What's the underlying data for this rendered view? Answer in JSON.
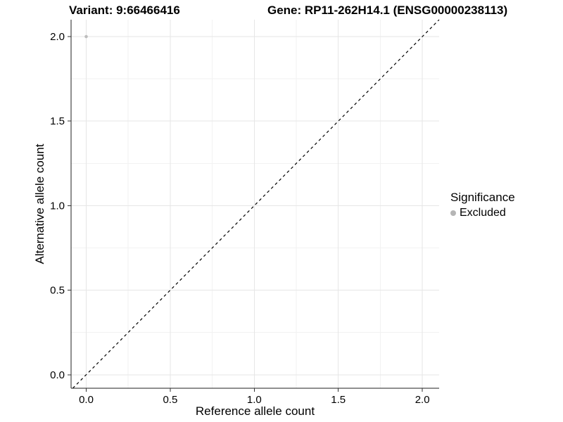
{
  "chart_data": {
    "type": "scatter",
    "title_left": "Variant: 9:66466416",
    "title_right": "Gene: RP11-262H14.1 (ENSG00000238113)",
    "xlabel": "Reference allele count",
    "ylabel": "Alternative allele count",
    "xlim": [
      -0.09,
      2.1
    ],
    "ylim": [
      -0.08,
      2.1
    ],
    "x_ticks": [
      0,
      0.5,
      1,
      1.5,
      2
    ],
    "x_tick_labels": [
      "0.0",
      "0.5",
      "1.0",
      "1.5",
      "2.0"
    ],
    "y_ticks": [
      0,
      0.5,
      1,
      1.5,
      2
    ],
    "y_tick_labels": [
      "0.0",
      "0.5",
      "1.0",
      "1.5",
      "2.0"
    ],
    "minor_ticks": [
      0.25,
      0.75,
      1.25,
      1.75
    ],
    "grid": "major and minor gridlines, white background",
    "identity_line": {
      "style": "dashed",
      "from": [
        0,
        0
      ],
      "to": [
        2,
        2
      ],
      "color": "#000000"
    },
    "series": [
      {
        "name": "Excluded",
        "color": "#bdbdbd",
        "points": [
          {
            "x": 0,
            "y": 2
          }
        ]
      }
    ],
    "legend": {
      "title": "Significance",
      "position": "right",
      "items": [
        {
          "label": "Excluded",
          "color": "#b5b5b5"
        }
      ]
    },
    "colors": {
      "background": "#ffffff",
      "grid_major": "#e6e6e6",
      "grid_minor": "#f2f2f2",
      "axis_line": "#1f1f1f",
      "tick_mark": "#333333",
      "text": "#000000",
      "point": "#bdbdbd"
    }
  }
}
